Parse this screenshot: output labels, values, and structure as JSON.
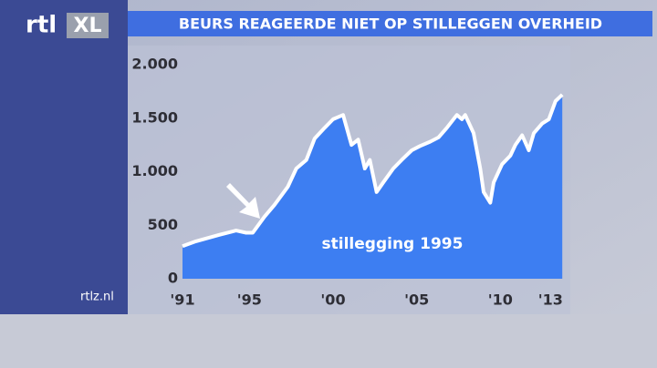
{
  "logo": [
    "rtl",
    "XL"
  ],
  "site": "rtlz.nl",
  "chart_data": {
    "type": "area",
    "title": "BEURS REAGEERDE NIET OP STILLEGGEN OVERHEID",
    "annotation": "stillegging 1995",
    "x": [
      1991.0,
      1991.8,
      1993.2,
      1994.2,
      1994.8,
      1995.2,
      1995.9,
      1996.5,
      1997.3,
      1997.8,
      1998.4,
      1998.9,
      1999.5,
      2000.0,
      2000.6,
      2001.1,
      2001.5,
      2001.9,
      2002.2,
      2002.6,
      2003.0,
      2003.6,
      2004.1,
      2004.7,
      2005.2,
      2005.8,
      2006.3,
      2006.8,
      2007.4,
      2007.7,
      2007.9,
      2008.4,
      2008.8,
      2009.0,
      2009.4,
      2009.6,
      2010.1,
      2010.6,
      2010.9,
      2011.3,
      2011.7,
      2012.0,
      2012.5,
      2012.9,
      2013.3,
      2013.7
    ],
    "values": [
      305,
      350,
      410,
      450,
      430,
      430,
      580,
      690,
      860,
      1030,
      1110,
      1310,
      1410,
      1490,
      1530,
      1250,
      1300,
      1030,
      1110,
      810,
      900,
      1030,
      1110,
      1200,
      1240,
      1280,
      1320,
      1410,
      1530,
      1490,
      1530,
      1360,
      1030,
      810,
      710,
      900,
      1070,
      1150,
      1250,
      1340,
      1200,
      1360,
      1450,
      1490,
      1660,
      1720
    ],
    "color": "#3d7ef2",
    "line_color": "#ffffff",
    "xlim": [
      1991,
      2013.8
    ],
    "ylim": [
      0,
      2000
    ],
    "xticks": [
      {
        "value": 1991,
        "label": "'91"
      },
      {
        "value": 1995,
        "label": "'95"
      },
      {
        "value": 2000,
        "label": "'00"
      },
      {
        "value": 2005,
        "label": "'05"
      },
      {
        "value": 2010,
        "label": "'10"
      },
      {
        "value": 2013,
        "label": "'13"
      }
    ],
    "yticks": [
      0,
      500,
      {
        "value": 1000,
        "label": "1.000"
      },
      {
        "value": 1500,
        "label": "1.500"
      },
      {
        "value": 2000,
        "label": "2.000"
      }
    ]
  }
}
